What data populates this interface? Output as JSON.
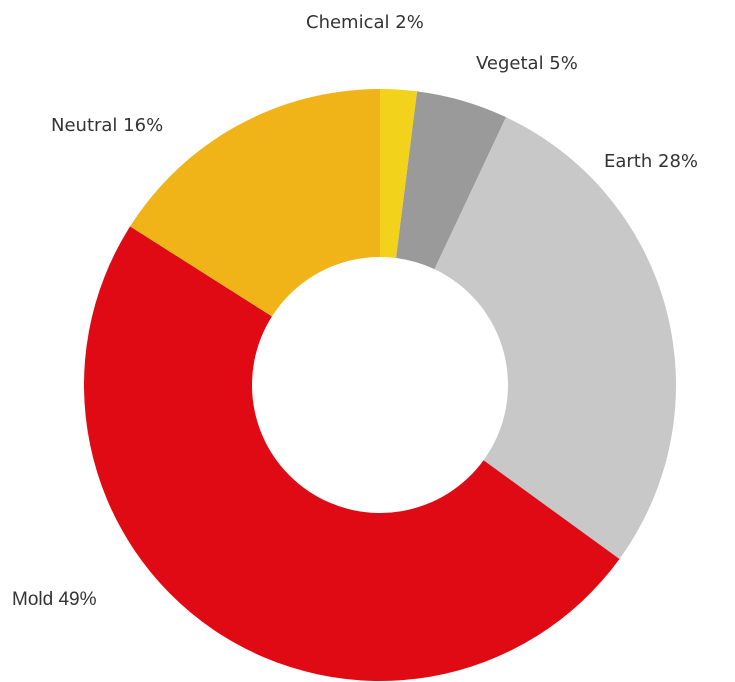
{
  "chart_data": {
    "type": "pie",
    "variant": "donut",
    "categories": [
      "Chemical",
      "Vegetal",
      "Earth",
      "Mold",
      "Neutral"
    ],
    "values": [
      2,
      5,
      28,
      49,
      16
    ],
    "labels": [
      "Chemical 2%",
      "Vegetal 5%",
      "Earth 28%",
      "Mold 49%",
      "Neutral 16%"
    ],
    "colors": [
      "#f2d21a",
      "#9a9a9a",
      "#c8c8c8",
      "#e00a15",
      "#f0b419"
    ],
    "start": "12 o'clock",
    "direction": "clockwise",
    "legend": "none"
  }
}
